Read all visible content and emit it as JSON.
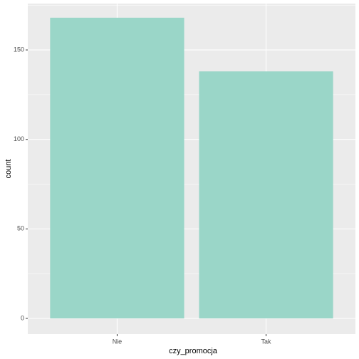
{
  "chart_data": {
    "type": "bar",
    "x_label": "czy_promocja",
    "y_label": "count",
    "categories": [
      "Nie",
      "Tak"
    ],
    "values": [
      168,
      138
    ],
    "color": "#9ad6c8",
    "ylim": [
      -8.75,
      175.9
    ],
    "yticks": [
      0,
      50,
      100,
      150
    ],
    "yminor": [
      25,
      75,
      125,
      175
    ],
    "grid": true
  }
}
